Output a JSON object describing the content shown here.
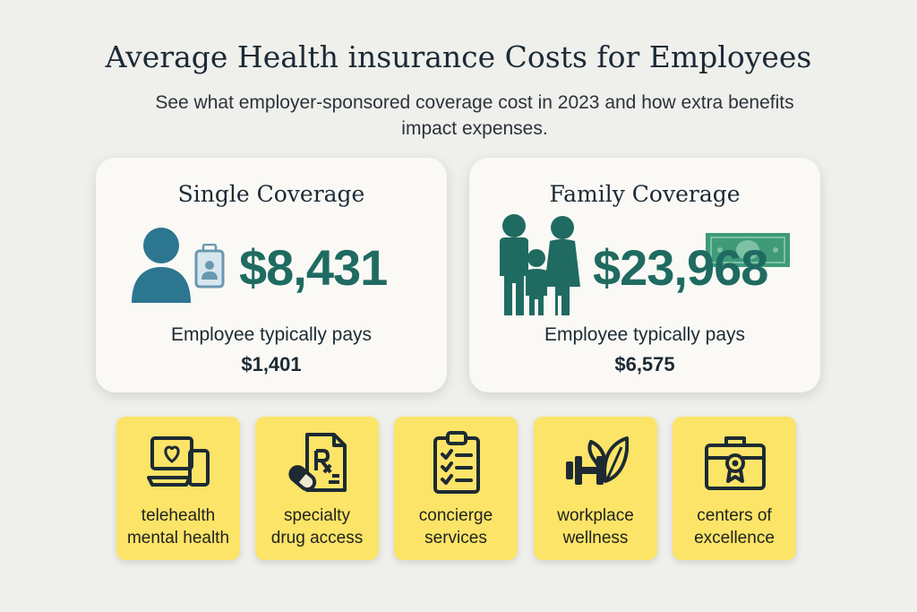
{
  "header": {
    "title": "Average Health insurance Costs for Employees",
    "subtitle": "See what employer-sponsored coverage cost in 2023 and how extra benefits impact expenses."
  },
  "cards": {
    "single": {
      "title": "Single Coverage",
      "amount": "$8,431",
      "pays_label": "Employee typically pays",
      "pays_value": "$1,401",
      "icons": [
        "person-icon",
        "id-badge-icon"
      ]
    },
    "family": {
      "title": "Family Coverage",
      "amount": "$23,968",
      "pays_label": "Employee typically pays",
      "pays_value": "$6,575",
      "icons": [
        "family-icon",
        "money-icon"
      ]
    }
  },
  "benefits": [
    {
      "line1": "telehealth",
      "line2": "mental health",
      "icon": "laptop-heart-icon"
    },
    {
      "line1": "specialty",
      "line2": "drug access",
      "icon": "prescription-icon"
    },
    {
      "line1": "concierge",
      "line2": "services",
      "icon": "clipboard-checklist-icon"
    },
    {
      "line1": "workplace",
      "line2": "wellness",
      "icon": "dumbbell-leaf-icon"
    },
    {
      "line1": "centers of",
      "line2": "excellence",
      "icon": "briefcase-award-icon"
    }
  ],
  "colors": {
    "background": "#efefec",
    "card": "#faf9f5",
    "accent_teal": "#1f6b61",
    "person_blue": "#2d7690",
    "benefit_yellow": "#fbe467"
  }
}
